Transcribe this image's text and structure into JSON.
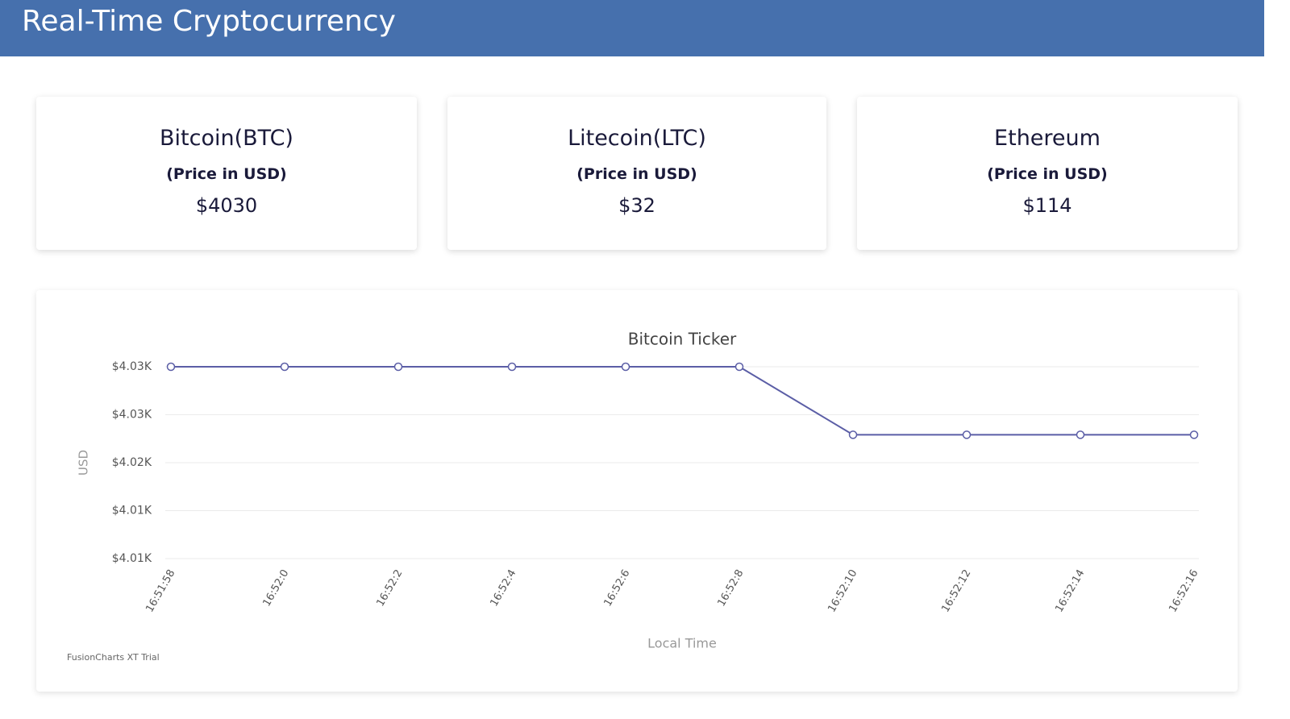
{
  "header": {
    "title": "Real-Time Cryptocurrency"
  },
  "cards": [
    {
      "name": "Bitcoin(BTC)",
      "subtitle": "(Price in USD)",
      "price": "$4030"
    },
    {
      "name": "Litecoin(LTC)",
      "subtitle": "(Price in USD)",
      "price": "$32"
    },
    {
      "name": "Ethereum",
      "subtitle": "(Price in USD)",
      "price": "$114"
    }
  ],
  "chart_data": {
    "type": "line",
    "title": "Bitcoin Ticker",
    "x_label": "Local Time",
    "y_label": "USD",
    "categories": [
      "16:51:58",
      "16:52:0",
      "16:52:2",
      "16:52:4",
      "16:52:6",
      "16:52:8",
      "16:52:10",
      "16:52:12",
      "16:52:14",
      "16:52:16"
    ],
    "values": [
      4030.5,
      4030.5,
      4030.5,
      4030.5,
      4030.5,
      4030.5,
      4022.7,
      4022.7,
      4022.7,
      4022.7
    ],
    "color": "#5b5ea6",
    "ylim": [
      4008.5,
      4030.5
    ],
    "yticks": [
      {
        "value": 4030.5,
        "label": "$4.03K"
      },
      {
        "value": 4025,
        "label": "$4.03K"
      },
      {
        "value": 4019.5,
        "label": "$4.02K"
      },
      {
        "value": 4014,
        "label": "$4.01K"
      },
      {
        "value": 4008.5,
        "label": "$4.01K"
      }
    ],
    "grid": true,
    "watermark": "FusionCharts XT Trial"
  }
}
